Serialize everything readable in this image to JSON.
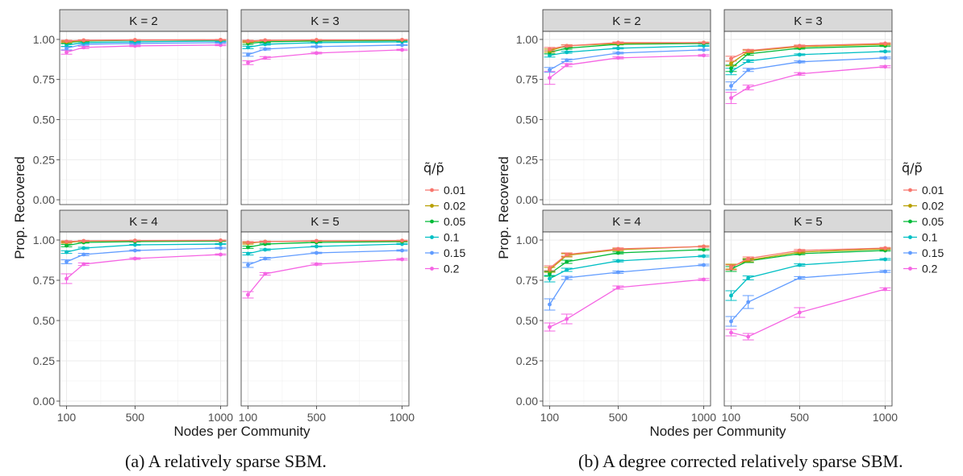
{
  "legend_title": "q̃/p̃",
  "legend_colors": [
    "#F8766D",
    "#B79F00",
    "#00BA38",
    "#00BFC4",
    "#619CFF",
    "#F564E3"
  ],
  "chart_data": [
    {
      "type": "line",
      "subtitle": "(a) A relatively sparse SBM.",
      "xlabel": "Nodes per Community",
      "ylabel": "Prop. Recovered",
      "x": [
        100,
        200,
        500,
        1000
      ],
      "xticks": [
        100,
        500,
        1000
      ],
      "xtick_labels": [
        "100",
        "500",
        "1000"
      ],
      "xlim": [
        60,
        1040
      ],
      "ylim": [
        -0.03,
        1.05
      ],
      "yticks": [
        0,
        0.25,
        0.5,
        0.75,
        1.0
      ],
      "ytick_labels": [
        "0.00",
        "0.25",
        "0.50",
        "0.75",
        "1.00"
      ],
      "grid": true,
      "legend_title": "q̃/p̃",
      "legend_position": "right",
      "legend_labels": [
        "0.01",
        "0.02",
        "0.05",
        "0.1",
        "0.15",
        "0.2"
      ],
      "panels": [
        {
          "title": "K = 2",
          "series": [
            {
              "name": "0.01",
              "values": [
                0.99,
                0.995,
                0.997,
                0.998
              ],
              "err": [
                0.005,
                0.003,
                0.002,
                0.002
              ]
            },
            {
              "name": "0.02",
              "values": [
                0.985,
                0.993,
                0.996,
                0.997
              ],
              "err": [
                0.005,
                0.003,
                0.002,
                0.002
              ]
            },
            {
              "name": "0.05",
              "values": [
                0.98,
                0.99,
                0.995,
                0.996
              ],
              "err": [
                0.006,
                0.004,
                0.002,
                0.002
              ]
            },
            {
              "name": "0.1",
              "values": [
                0.965,
                0.98,
                0.985,
                0.99
              ],
              "err": [
                0.008,
                0.005,
                0.003,
                0.003
              ]
            },
            {
              "name": "0.15",
              "values": [
                0.945,
                0.97,
                0.975,
                0.98
              ],
              "err": [
                0.01,
                0.006,
                0.004,
                0.003
              ]
            },
            {
              "name": "0.2",
              "values": [
                0.92,
                0.95,
                0.96,
                0.965
              ],
              "err": [
                0.012,
                0.007,
                0.005,
                0.004
              ]
            }
          ]
        },
        {
          "title": "K = 3",
          "series": [
            {
              "name": "0.01",
              "values": [
                0.99,
                0.995,
                0.997,
                0.998
              ],
              "err": [
                0.005,
                0.003,
                0.002,
                0.002
              ]
            },
            {
              "name": "0.02",
              "values": [
                0.985,
                0.993,
                0.996,
                0.997
              ],
              "err": [
                0.005,
                0.003,
                0.002,
                0.002
              ]
            },
            {
              "name": "0.05",
              "values": [
                0.975,
                0.985,
                0.99,
                0.993
              ],
              "err": [
                0.006,
                0.004,
                0.002,
                0.002
              ]
            },
            {
              "name": "0.1",
              "values": [
                0.95,
                0.97,
                0.98,
                0.985
              ],
              "err": [
                0.008,
                0.005,
                0.003,
                0.003
              ]
            },
            {
              "name": "0.15",
              "values": [
                0.905,
                0.94,
                0.955,
                0.965
              ],
              "err": [
                0.01,
                0.006,
                0.004,
                0.003
              ]
            },
            {
              "name": "0.2",
              "values": [
                0.855,
                0.885,
                0.915,
                0.935
              ],
              "err": [
                0.012,
                0.008,
                0.005,
                0.004
              ]
            }
          ]
        },
        {
          "title": "K = 4",
          "series": [
            {
              "name": "0.01",
              "values": [
                0.99,
                0.995,
                0.997,
                0.998
              ],
              "err": [
                0.005,
                0.003,
                0.002,
                0.002
              ]
            },
            {
              "name": "0.02",
              "values": [
                0.985,
                0.993,
                0.996,
                0.997
              ],
              "err": [
                0.005,
                0.003,
                0.002,
                0.002
              ]
            },
            {
              "name": "0.05",
              "values": [
                0.965,
                0.985,
                0.99,
                0.993
              ],
              "err": [
                0.007,
                0.004,
                0.002,
                0.002
              ]
            },
            {
              "name": "0.1",
              "values": [
                0.925,
                0.95,
                0.97,
                0.975
              ],
              "err": [
                0.008,
                0.005,
                0.003,
                0.003
              ]
            },
            {
              "name": "0.15",
              "values": [
                0.865,
                0.91,
                0.935,
                0.95
              ],
              "err": [
                0.012,
                0.007,
                0.004,
                0.004
              ]
            },
            {
              "name": "0.2",
              "values": [
                0.76,
                0.85,
                0.885,
                0.91
              ],
              "err": [
                0.03,
                0.008,
                0.005,
                0.004
              ]
            }
          ]
        },
        {
          "title": "K = 5",
          "series": [
            {
              "name": "0.01",
              "values": [
                0.985,
                0.99,
                0.995,
                0.997
              ],
              "err": [
                0.005,
                0.003,
                0.002,
                0.002
              ]
            },
            {
              "name": "0.02",
              "values": [
                0.98,
                0.99,
                0.993,
                0.995
              ],
              "err": [
                0.006,
                0.003,
                0.002,
                0.002
              ]
            },
            {
              "name": "0.05",
              "values": [
                0.955,
                0.975,
                0.985,
                0.99
              ],
              "err": [
                0.007,
                0.004,
                0.002,
                0.002
              ]
            },
            {
              "name": "0.1",
              "values": [
                0.915,
                0.94,
                0.96,
                0.975
              ],
              "err": [
                0.008,
                0.005,
                0.003,
                0.003
              ]
            },
            {
              "name": "0.15",
              "values": [
                0.845,
                0.885,
                0.92,
                0.935
              ],
              "err": [
                0.015,
                0.007,
                0.004,
                0.004
              ]
            },
            {
              "name": "0.2",
              "values": [
                0.66,
                0.79,
                0.85,
                0.88
              ],
              "err": [
                0.02,
                0.008,
                0.006,
                0.005
              ]
            }
          ]
        }
      ]
    },
    {
      "type": "line",
      "subtitle": "(b) A degree corrected relatively sparse SBM.",
      "xlabel": "Nodes per Community",
      "ylabel": "Prop. Recovered",
      "x": [
        100,
        200,
        500,
        1000
      ],
      "xticks": [
        100,
        500,
        1000
      ],
      "xtick_labels": [
        "100",
        "500",
        "1000"
      ],
      "xlim": [
        60,
        1040
      ],
      "ylim": [
        -0.03,
        1.05
      ],
      "yticks": [
        0,
        0.25,
        0.5,
        0.75,
        1.0
      ],
      "ytick_labels": [
        "0.00",
        "0.25",
        "0.50",
        "0.75",
        "1.00"
      ],
      "grid": true,
      "legend_title": "q̃/p̃",
      "legend_position": "right",
      "legend_labels": [
        "0.01",
        "0.02",
        "0.05",
        "0.1",
        "0.15",
        "0.2"
      ],
      "panels": [
        {
          "title": "K = 2",
          "series": [
            {
              "name": "0.01",
              "values": [
                0.94,
                0.96,
                0.98,
                0.98
              ],
              "err": [
                0.01,
                0.006,
                0.004,
                0.003
              ]
            },
            {
              "name": "0.02",
              "values": [
                0.93,
                0.96,
                0.975,
                0.98
              ],
              "err": [
                0.01,
                0.006,
                0.004,
                0.003
              ]
            },
            {
              "name": "0.05",
              "values": [
                0.92,
                0.945,
                0.97,
                0.975
              ],
              "err": [
                0.01,
                0.006,
                0.004,
                0.003
              ]
            },
            {
              "name": "0.1",
              "values": [
                0.9,
                0.92,
                0.945,
                0.96
              ],
              "err": [
                0.01,
                0.006,
                0.004,
                0.003
              ]
            },
            {
              "name": "0.15",
              "values": [
                0.81,
                0.87,
                0.915,
                0.935
              ],
              "err": [
                0.015,
                0.008,
                0.005,
                0.004
              ]
            },
            {
              "name": "0.2",
              "values": [
                0.76,
                0.84,
                0.885,
                0.9
              ],
              "err": [
                0.04,
                0.01,
                0.006,
                0.005
              ]
            }
          ]
        },
        {
          "title": "K = 3",
          "series": [
            {
              "name": "0.01",
              "values": [
                0.88,
                0.93,
                0.96,
                0.975
              ],
              "err": [
                0.015,
                0.008,
                0.005,
                0.004
              ]
            },
            {
              "name": "0.02",
              "values": [
                0.85,
                0.925,
                0.955,
                0.97
              ],
              "err": [
                0.015,
                0.008,
                0.005,
                0.004
              ]
            },
            {
              "name": "0.05",
              "values": [
                0.82,
                0.91,
                0.945,
                0.96
              ],
              "err": [
                0.02,
                0.008,
                0.005,
                0.004
              ]
            },
            {
              "name": "0.1",
              "values": [
                0.8,
                0.865,
                0.905,
                0.925
              ],
              "err": [
                0.02,
                0.008,
                0.005,
                0.004
              ]
            },
            {
              "name": "0.15",
              "values": [
                0.71,
                0.81,
                0.86,
                0.885
              ],
              "err": [
                0.025,
                0.01,
                0.006,
                0.005
              ]
            },
            {
              "name": "0.2",
              "values": [
                0.635,
                0.7,
                0.785,
                0.83
              ],
              "err": [
                0.035,
                0.015,
                0.008,
                0.006
              ]
            }
          ]
        },
        {
          "title": "K = 4",
          "series": [
            {
              "name": "0.01",
              "values": [
                0.825,
                0.91,
                0.945,
                0.96
              ],
              "err": [
                0.015,
                0.01,
                0.006,
                0.004
              ]
            },
            {
              "name": "0.02",
              "values": [
                0.815,
                0.905,
                0.94,
                0.96
              ],
              "err": [
                0.015,
                0.01,
                0.006,
                0.004
              ]
            },
            {
              "name": "0.05",
              "values": [
                0.79,
                0.865,
                0.92,
                0.94
              ],
              "err": [
                0.015,
                0.01,
                0.006,
                0.004
              ]
            },
            {
              "name": "0.1",
              "values": [
                0.76,
                0.815,
                0.87,
                0.9
              ],
              "err": [
                0.02,
                0.01,
                0.006,
                0.005
              ]
            },
            {
              "name": "0.15",
              "values": [
                0.6,
                0.765,
                0.8,
                0.845
              ],
              "err": [
                0.035,
                0.01,
                0.007,
                0.005
              ]
            },
            {
              "name": "0.2",
              "values": [
                0.46,
                0.51,
                0.705,
                0.755
              ],
              "err": [
                0.025,
                0.03,
                0.01,
                0.006
              ]
            }
          ]
        },
        {
          "title": "K = 5",
          "series": [
            {
              "name": "0.01",
              "values": [
                0.83,
                0.885,
                0.935,
                0.95
              ],
              "err": [
                0.015,
                0.01,
                0.006,
                0.004
              ]
            },
            {
              "name": "0.02",
              "values": [
                0.835,
                0.875,
                0.925,
                0.945
              ],
              "err": [
                0.015,
                0.01,
                0.006,
                0.004
              ]
            },
            {
              "name": "0.05",
              "values": [
                0.82,
                0.87,
                0.915,
                0.935
              ],
              "err": [
                0.015,
                0.01,
                0.006,
                0.004
              ]
            },
            {
              "name": "0.1",
              "values": [
                0.655,
                0.765,
                0.845,
                0.88
              ],
              "err": [
                0.03,
                0.012,
                0.007,
                0.005
              ]
            },
            {
              "name": "0.15",
              "values": [
                0.495,
                0.615,
                0.765,
                0.805
              ],
              "err": [
                0.03,
                0.04,
                0.008,
                0.006
              ]
            },
            {
              "name": "0.2",
              "values": [
                0.425,
                0.4,
                0.55,
                0.695
              ],
              "err": [
                0.02,
                0.02,
                0.03,
                0.008
              ]
            }
          ]
        }
      ]
    }
  ]
}
